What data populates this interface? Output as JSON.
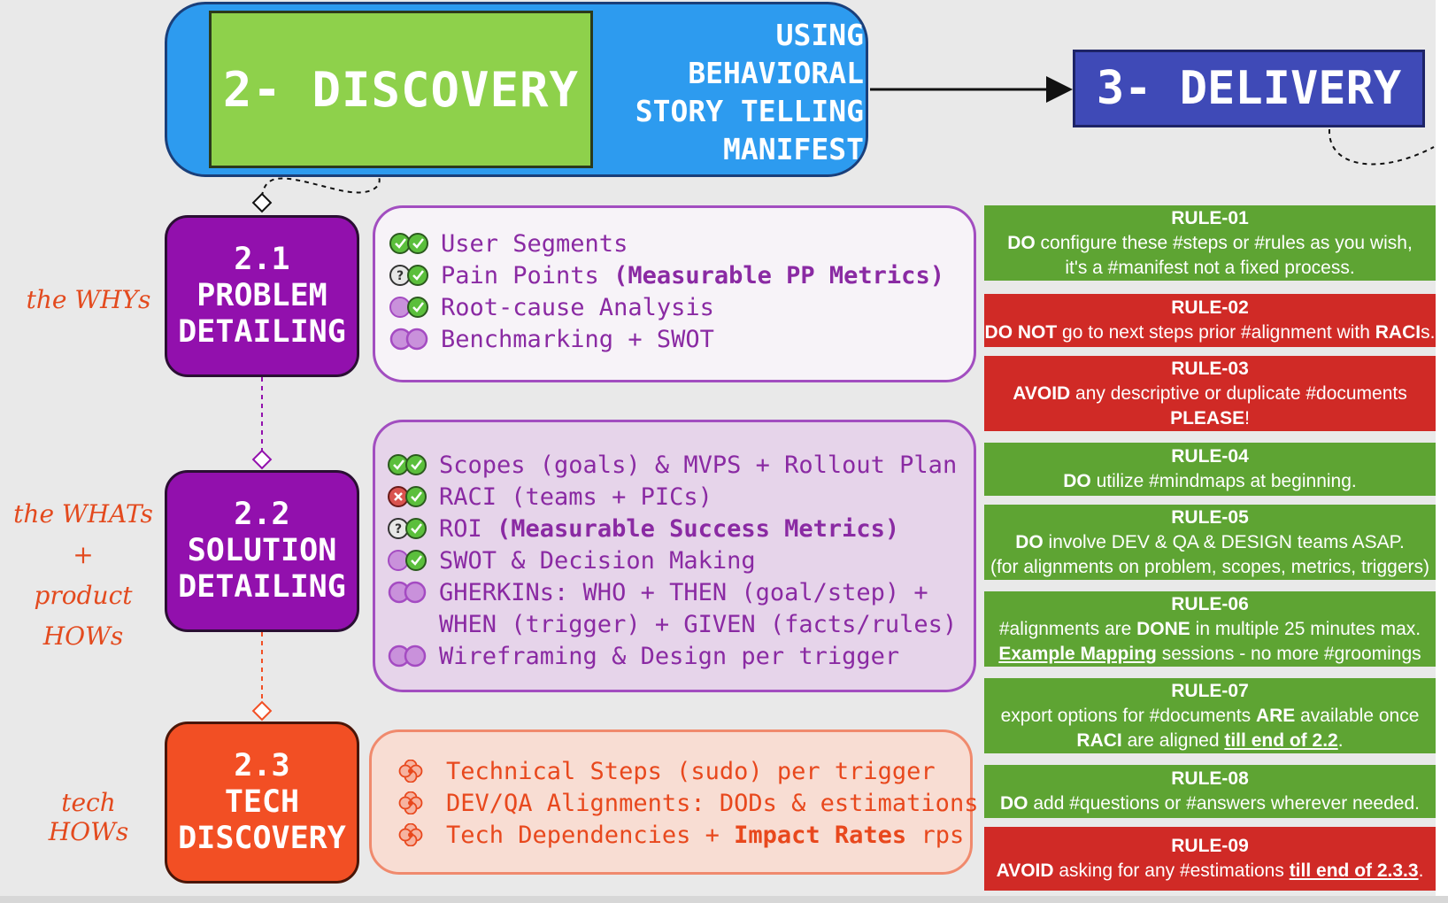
{
  "header": {
    "discovery": "2- DISCOVERY",
    "manifest_lines": [
      "USING",
      "BEHAVIORAL",
      "STORY TELLING",
      "MANIFEST"
    ],
    "delivery": "3- DELIVERY"
  },
  "steps": [
    {
      "lines": [
        "2.1",
        "PROBLEM",
        "DETAILING"
      ],
      "side_label": [
        "the WHYs"
      ]
    },
    {
      "lines": [
        "2.2",
        "SOLUTION",
        "DETAILING"
      ],
      "side_label": [
        "the WHATs",
        "+",
        "product HOWs"
      ]
    },
    {
      "lines": [
        "2.3",
        "TECH",
        "DISCOVERY"
      ],
      "side_label": [
        "tech HOWs"
      ]
    }
  ],
  "problem_items": [
    {
      "icon": "check-check-icon",
      "parts": [
        {
          "t": "User Segments",
          "b": false
        }
      ]
    },
    {
      "icon": "question-check-icon",
      "parts": [
        {
          "t": "Pain Points ",
          "b": false
        },
        {
          "t": "(Measurable PP Metrics)",
          "b": true
        }
      ]
    },
    {
      "icon": "circle-check-icon",
      "parts": [
        {
          "t": "Root-cause Analysis",
          "b": false
        }
      ]
    },
    {
      "icon": "double-circle-icon",
      "parts": [
        {
          "t": "Benchmarking + SWOT",
          "b": false
        }
      ]
    }
  ],
  "solution_items": [
    {
      "icon": "check-check-icon",
      "parts": [
        {
          "t": "Scopes (goals) & MVPS + Rollout Plan",
          "b": false
        }
      ]
    },
    {
      "icon": "cross-check-icon",
      "parts": [
        {
          "t": "RACI (teams + PICs)",
          "b": false
        }
      ]
    },
    {
      "icon": "question-check-icon",
      "parts": [
        {
          "t": "ROI ",
          "b": false
        },
        {
          "t": "(Measurable Success Metrics)",
          "b": true
        }
      ]
    },
    {
      "icon": "circle-check-icon",
      "parts": [
        {
          "t": "SWOT & Decision Making",
          "b": false
        }
      ]
    },
    {
      "icon": "double-circle-icon",
      "parts": [
        {
          "t": "GHERKINs: WHO + THEN (goal/step) +",
          "b": false
        }
      ]
    },
    {
      "icon": "",
      "parts": [
        {
          "t": "WHEN (trigger) + GIVEN (facts/rules)",
          "b": false
        }
      ]
    },
    {
      "icon": "double-circle-icon",
      "parts": [
        {
          "t": "Wireframing & Design per trigger",
          "b": false
        }
      ]
    }
  ],
  "tech_items": [
    {
      "icon": "flower-icon",
      "parts": [
        {
          "t": "Technical Steps (sudo) per trigger",
          "b": false
        }
      ]
    },
    {
      "icon": "flower-icon",
      "parts": [
        {
          "t": "DEV/QA Alignments: DODs & estimations",
          "b": false
        }
      ]
    },
    {
      "icon": "flower-icon",
      "parts": [
        {
          "t": "Tech Dependencies + ",
          "b": false
        },
        {
          "t": "Impact Rates",
          "b": true
        },
        {
          "t": " rps",
          "b": false
        }
      ]
    }
  ],
  "rules": [
    {
      "title": "RULE-01",
      "color": "#5ea433",
      "lines": [
        [
          {
            "t": "DO",
            "s": "b"
          },
          {
            "t": " configure these #steps or #rules as you wish,",
            "s": ""
          }
        ],
        [
          {
            "t": "it's a #manifest not a fixed process.",
            "s": ""
          }
        ]
      ]
    },
    {
      "title": "RULE-02",
      "color": "#d02a26",
      "lines": [
        [
          {
            "t": "DO NOT",
            "s": "b"
          },
          {
            "t": " go to next steps prior #alignment with ",
            "s": ""
          },
          {
            "t": "RACI",
            "s": "b"
          },
          {
            "t": "s.",
            "s": ""
          }
        ]
      ]
    },
    {
      "title": "RULE-03",
      "color": "#d02a26",
      "lines": [
        [
          {
            "t": "AVOID",
            "s": "b"
          },
          {
            "t": " any descriptive or duplicate #documents",
            "s": ""
          }
        ],
        [
          {
            "t": "PLEASE",
            "s": "b"
          },
          {
            "t": "!",
            "s": ""
          }
        ]
      ]
    },
    {
      "title": "RULE-04",
      "color": "#5ea433",
      "lines": [
        [
          {
            "t": "DO",
            "s": "b"
          },
          {
            "t": " utilize #mindmaps at beginning.",
            "s": ""
          }
        ]
      ]
    },
    {
      "title": "RULE-05",
      "color": "#5ea433",
      "lines": [
        [
          {
            "t": "DO",
            "s": "b"
          },
          {
            "t": " involve DEV & QA & DESIGN teams ASAP.",
            "s": ""
          }
        ],
        [
          {
            "t": "(for alignments on problem, scopes, metrics, triggers)",
            "s": ""
          }
        ]
      ]
    },
    {
      "title": "RULE-06",
      "color": "#5ea433",
      "lines": [
        [
          {
            "t": "#alignments are ",
            "s": ""
          },
          {
            "t": "DONE",
            "s": "b"
          },
          {
            "t": " in multiple 25 minutes max.",
            "s": ""
          }
        ],
        [
          {
            "t": "Example Mapping",
            "s": "u"
          },
          {
            "t": " sessions - no more #groomings",
            "s": ""
          }
        ]
      ]
    },
    {
      "title": "RULE-07",
      "color": "#5ea433",
      "lines": [
        [
          {
            "t": "export options for #documents ",
            "s": ""
          },
          {
            "t": "ARE",
            "s": "b"
          },
          {
            "t": " available once",
            "s": ""
          }
        ],
        [
          {
            "t": "RACI",
            "s": "b"
          },
          {
            "t": " are aligned ",
            "s": ""
          },
          {
            "t": "till end of 2.2",
            "s": "u"
          },
          {
            "t": ".",
            "s": ""
          }
        ]
      ]
    },
    {
      "title": "RULE-08",
      "color": "#5ea433",
      "lines": [
        [
          {
            "t": "DO",
            "s": "b"
          },
          {
            "t": " add #questions or #answers wherever needed.",
            "s": ""
          }
        ]
      ]
    },
    {
      "title": "RULE-09",
      "color": "#d02a26",
      "lines": [
        [
          {
            "t": "AVOID",
            "s": "b"
          },
          {
            "t": " asking for any #estimations ",
            "s": ""
          },
          {
            "t": "till end of 2.3.3",
            "s": "u"
          },
          {
            "t": ".",
            "s": ""
          }
        ]
      ]
    }
  ]
}
